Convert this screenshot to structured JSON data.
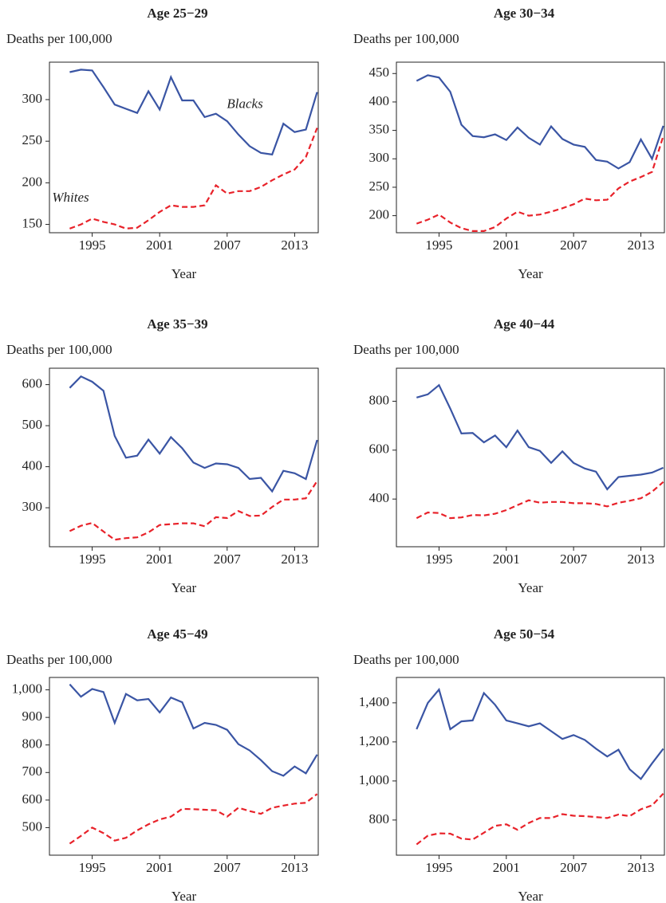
{
  "chart_data": [
    {
      "type": "line",
      "title": "Age 25−29",
      "ylabel": "Deaths per 100,000",
      "xlabel": "Year",
      "x": [
        1993,
        1994,
        1995,
        1996,
        1997,
        1998,
        1999,
        2000,
        2001,
        2002,
        2003,
        2004,
        2005,
        2006,
        2007,
        2008,
        2009,
        2010,
        2011,
        2012,
        2013,
        2014,
        2015
      ],
      "xlim": [
        1991.2,
        2015.1
      ],
      "xticks": [
        1995,
        2001,
        2007,
        2013
      ],
      "ylim": [
        140,
        345
      ],
      "yticks": [
        150,
        200,
        250,
        300
      ],
      "series": [
        {
          "name": "Blacks",
          "color": "#3a55a4",
          "dashed": false,
          "values": [
            333,
            336,
            335,
            315,
            294,
            289,
            284,
            310,
            288,
            327,
            299,
            299,
            279,
            283,
            274,
            258,
            244,
            236,
            234,
            271,
            261,
            264,
            309
          ]
        },
        {
          "name": "Whites",
          "color": "#e8222a",
          "dashed": true,
          "values": [
            145,
            150,
            157,
            153,
            150,
            145,
            146,
            155,
            165,
            173,
            171,
            171,
            173,
            197,
            187,
            190,
            190,
            195,
            203,
            210,
            216,
            231,
            266
          ]
        }
      ]
    },
    {
      "type": "line",
      "title": "Age 30−34",
      "ylabel": "Deaths per 100,000",
      "xlabel": "Year",
      "x": [
        1993,
        1994,
        1995,
        1996,
        1997,
        1998,
        1999,
        2000,
        2001,
        2002,
        2003,
        2004,
        2005,
        2006,
        2007,
        2008,
        2009,
        2010,
        2011,
        2012,
        2013,
        2014,
        2015
      ],
      "xlim": [
        1991.2,
        2015.1
      ],
      "xticks": [
        1995,
        2001,
        2007,
        2013
      ],
      "ylim": [
        170,
        470
      ],
      "yticks": [
        200,
        250,
        300,
        350,
        400,
        450
      ],
      "series": [
        {
          "color": "#3a55a4",
          "dashed": false,
          "values": [
            437,
            447,
            443,
            418,
            360,
            340,
            338,
            343,
            333,
            355,
            337,
            325,
            357,
            335,
            325,
            321,
            298,
            295,
            283,
            294,
            334,
            300,
            358
          ]
        },
        {
          "color": "#e8222a",
          "dashed": true,
          "values": [
            186,
            193,
            202,
            188,
            178,
            173,
            173,
            180,
            195,
            207,
            200,
            202,
            207,
            213,
            220,
            230,
            227,
            228,
            248,
            260,
            268,
            277,
            340
          ]
        }
      ]
    },
    {
      "type": "line",
      "title": "Age 35−39",
      "ylabel": "Deaths per 100,000",
      "xlabel": "Year",
      "x": [
        1993,
        1994,
        1995,
        1996,
        1997,
        1998,
        1999,
        2000,
        2001,
        2002,
        2003,
        2004,
        2005,
        2006,
        2007,
        2008,
        2009,
        2010,
        2011,
        2012,
        2013,
        2014,
        2015
      ],
      "xlim": [
        1991.2,
        2015.1
      ],
      "xticks": [
        1995,
        2001,
        2007,
        2013
      ],
      "ylim": [
        205,
        640
      ],
      "yticks": [
        300,
        400,
        500,
        600
      ],
      "series": [
        {
          "color": "#3a55a4",
          "dashed": false,
          "values": [
            592,
            620,
            607,
            585,
            475,
            422,
            427,
            466,
            432,
            472,
            445,
            410,
            397,
            408,
            406,
            397,
            370,
            373,
            340,
            390,
            384,
            370,
            465
          ]
        },
        {
          "color": "#e8222a",
          "dashed": true,
          "values": [
            243,
            256,
            263,
            242,
            222,
            226,
            228,
            240,
            258,
            260,
            262,
            262,
            255,
            277,
            275,
            292,
            280,
            281,
            302,
            320,
            320,
            323,
            365
          ]
        }
      ]
    },
    {
      "type": "line",
      "title": "Age 40−44",
      "ylabel": "Deaths per 100,000",
      "xlabel": "Year",
      "x": [
        1993,
        1994,
        1995,
        1996,
        1997,
        1998,
        1999,
        2000,
        2001,
        2002,
        2003,
        2004,
        2005,
        2006,
        2007,
        2008,
        2009,
        2010,
        2011,
        2012,
        2013,
        2014,
        2015
      ],
      "xlim": [
        1991.2,
        2015.1
      ],
      "xticks": [
        1995,
        2001,
        2007,
        2013
      ],
      "ylim": [
        205,
        935
      ],
      "yticks": [
        400,
        600,
        800
      ],
      "series": [
        {
          "color": "#3a55a4",
          "dashed": false,
          "values": [
            815,
            828,
            866,
            770,
            668,
            670,
            632,
            660,
            612,
            680,
            612,
            597,
            548,
            595,
            548,
            525,
            512,
            440,
            490,
            495,
            500,
            508,
            528
          ]
        },
        {
          "color": "#e8222a",
          "dashed": true,
          "values": [
            322,
            345,
            343,
            322,
            325,
            335,
            333,
            340,
            355,
            375,
            395,
            385,
            388,
            388,
            383,
            383,
            380,
            370,
            385,
            393,
            403,
            430,
            470
          ]
        }
      ]
    },
    {
      "type": "line",
      "title": "Age 45−49",
      "ylabel": "Deaths per 100,000",
      "xlabel": "Year",
      "x": [
        1993,
        1994,
        1995,
        1996,
        1997,
        1998,
        1999,
        2000,
        2001,
        2002,
        2003,
        2004,
        2005,
        2006,
        2007,
        2008,
        2009,
        2010,
        2011,
        2012,
        2013,
        2014,
        2015
      ],
      "xlim": [
        1991.2,
        2015.1
      ],
      "xticks": [
        1995,
        2001,
        2007,
        2013
      ],
      "ylim": [
        400,
        1045
      ],
      "yticks": [
        500,
        600,
        700,
        800,
        900,
        {
          "value": 1000,
          "label": "1,000"
        }
      ],
      "series": [
        {
          "color": "#3a55a4",
          "dashed": false,
          "values": [
            1020,
            975,
            1003,
            992,
            880,
            985,
            962,
            967,
            918,
            972,
            955,
            860,
            880,
            873,
            855,
            803,
            780,
            745,
            705,
            688,
            722,
            697,
            765
          ]
        },
        {
          "color": "#e8222a",
          "dashed": true,
          "values": [
            442,
            470,
            500,
            480,
            453,
            463,
            490,
            512,
            530,
            540,
            568,
            567,
            565,
            563,
            540,
            572,
            560,
            550,
            572,
            580,
            587,
            590,
            622
          ]
        }
      ]
    },
    {
      "type": "line",
      "title": "Age 50−54",
      "ylabel": "Deaths per 100,000",
      "xlabel": "Year",
      "x": [
        1993,
        1994,
        1995,
        1996,
        1997,
        1998,
        1999,
        2000,
        2001,
        2002,
        2003,
        2004,
        2005,
        2006,
        2007,
        2008,
        2009,
        2010,
        2011,
        2012,
        2013,
        2014,
        2015
      ],
      "xlim": [
        1991.2,
        2015.1
      ],
      "xticks": [
        1995,
        2001,
        2007,
        2013
      ],
      "ylim": [
        620,
        1530
      ],
      "yticks": [
        800,
        {
          "value": 1000,
          "label": "1,000"
        },
        {
          "value": 1200,
          "label": "1,200"
        },
        {
          "value": 1400,
          "label": "1,400"
        }
      ],
      "series": [
        {
          "color": "#3a55a4",
          "dashed": false,
          "values": [
            1265,
            1400,
            1468,
            1265,
            1305,
            1310,
            1450,
            1390,
            1310,
            1295,
            1280,
            1295,
            1255,
            1215,
            1235,
            1210,
            1165,
            1125,
            1160,
            1060,
            1010,
            1090,
            1165
          ]
        },
        {
          "color": "#e8222a",
          "dashed": true,
          "values": [
            675,
            720,
            732,
            730,
            705,
            700,
            735,
            770,
            778,
            750,
            785,
            810,
            810,
            830,
            822,
            820,
            815,
            810,
            828,
            820,
            855,
            875,
            935
          ]
        }
      ]
    }
  ]
}
